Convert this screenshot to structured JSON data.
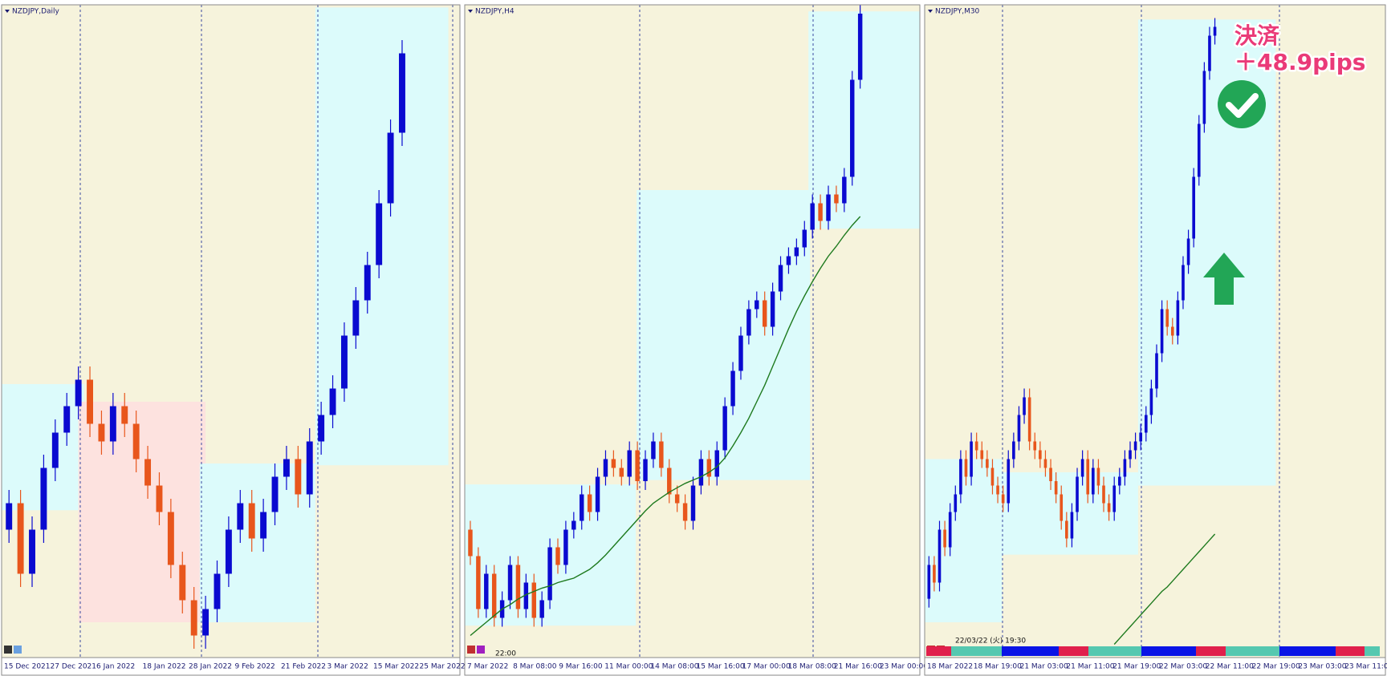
{
  "chart_data": [
    {
      "type": "candlestick",
      "title": "NZDJPY,Daily",
      "xtick_labels": [
        "15 Dec 2021",
        "27 Dec 2021",
        "6 Jan 2022",
        "18 Jan 2022",
        "28 Jan 2022",
        "9 Feb 2022",
        "21 Feb 2022",
        "3 Mar 2022",
        "15 Mar 2022",
        "25 Mar 2022"
      ],
      "ylim": [
        76.55,
        83.95
      ],
      "colors": {
        "up": "#0a0ad0",
        "down": "#e8561c",
        "ma": "#1e7a1e"
      },
      "open": [
        78.0,
        78.3,
        77.5,
        78.0,
        78.7,
        79.1,
        79.4,
        79.7,
        79.2,
        79.0,
        79.4,
        79.2,
        78.8,
        78.5,
        78.2,
        77.6,
        77.2,
        76.8,
        77.1,
        77.5,
        78.0,
        78.3,
        77.9,
        78.2,
        78.6,
        78.8,
        78.4,
        79.0,
        79.3,
        79.6,
        80.2,
        80.6,
        81.0,
        81.7,
        82.5
      ],
      "high": [
        78.45,
        78.45,
        78.15,
        78.85,
        79.25,
        79.55,
        79.85,
        79.85,
        79.35,
        79.55,
        79.55,
        79.35,
        78.95,
        78.65,
        78.35,
        77.75,
        77.35,
        77.25,
        77.65,
        78.15,
        78.45,
        78.45,
        78.35,
        78.75,
        78.95,
        78.95,
        79.15,
        79.45,
        79.75,
        80.35,
        80.75,
        81.15,
        81.85,
        82.65,
        83.55
      ],
      "low": [
        77.85,
        77.35,
        77.35,
        77.85,
        78.55,
        78.95,
        79.25,
        79.05,
        78.85,
        78.85,
        79.05,
        78.65,
        78.35,
        78.05,
        77.45,
        77.05,
        76.65,
        76.65,
        76.95,
        77.35,
        77.85,
        77.75,
        77.75,
        78.05,
        78.45,
        78.25,
        78.25,
        78.85,
        79.15,
        79.45,
        80.05,
        80.45,
        80.85,
        81.55,
        82.35
      ],
      "close": [
        78.3,
        77.5,
        78.0,
        78.7,
        79.1,
        79.4,
        79.7,
        79.2,
        79.0,
        79.4,
        79.2,
        78.8,
        78.5,
        78.2,
        77.6,
        77.2,
        76.8,
        77.1,
        77.5,
        78.0,
        78.3,
        77.9,
        78.2,
        78.6,
        78.8,
        78.4,
        79.0,
        79.3,
        79.6,
        80.2,
        80.6,
        81.0,
        81.7,
        82.5,
        83.4
      ],
      "zones": [
        {
          "color": "#dcfbfb",
          "x": [
            -0.5,
            6
          ],
          "y": [
            79.65,
            78.22
          ]
        },
        {
          "color": "#fde2df",
          "x": [
            6.5,
            16.5
          ],
          "y": [
            79.45,
            76.95
          ]
        },
        {
          "color": "#dcfbfb",
          "x": [
            17,
            26
          ],
          "y": [
            78.75,
            76.95
          ]
        },
        {
          "color": "#dcfbfb",
          "x": [
            27,
            37.5
          ],
          "y": [
            83.92,
            78.73
          ]
        }
      ]
    },
    {
      "type": "candlestick",
      "title": "NZDJPY,H4",
      "cursor_label": "22:00",
      "xtick_labels": [
        "7 Mar 2022",
        "8 Mar 08:00",
        "9 Mar 16:00",
        "11 Mar 00:00",
        "14 Mar 08:00",
        "15 Mar 16:00",
        "17 Mar 00:00",
        "18 Mar 08:00",
        "21 Mar 16:00",
        "23 Mar 00:00"
      ],
      "ylim": [
        77.74,
        83.66
      ],
      "colors": {
        "up": "#0a0ad0",
        "down": "#e8561c",
        "ma": "#1e7a1e"
      },
      "open": [
        78.9,
        78.66,
        78.18,
        78.5,
        78.1,
        78.26,
        78.58,
        78.18,
        78.42,
        78.1,
        78.26,
        78.74,
        78.58,
        78.9,
        78.98,
        79.22,
        79.06,
        79.38,
        79.54,
        79.46,
        79.38,
        79.62,
        79.34,
        79.54,
        79.7,
        79.46,
        79.22,
        79.14,
        78.98,
        79.3,
        79.54,
        79.38,
        79.62,
        80.02,
        80.34,
        80.66,
        80.9,
        80.98,
        80.74,
        81.06,
        81.3,
        81.38,
        81.46,
        81.62,
        81.86,
        81.7,
        81.94,
        81.86,
        82.1,
        82.98
      ],
      "high": [
        78.98,
        78.74,
        78.58,
        78.58,
        78.34,
        78.66,
        78.66,
        78.5,
        78.5,
        78.34,
        78.82,
        78.82,
        78.98,
        79.06,
        79.3,
        79.3,
        79.46,
        79.62,
        79.62,
        79.54,
        79.7,
        79.7,
        79.62,
        79.78,
        79.78,
        79.54,
        79.3,
        79.22,
        79.38,
        79.62,
        79.62,
        79.7,
        80.1,
        80.42,
        80.74,
        80.98,
        81.06,
        81.06,
        81.14,
        81.38,
        81.46,
        81.54,
        81.7,
        81.94,
        81.94,
        82.02,
        82.02,
        82.18,
        83.06,
        83.66
      ],
      "low": [
        78.58,
        78.1,
        78.1,
        78.02,
        78.02,
        78.18,
        78.1,
        78.1,
        78.02,
        78.02,
        78.18,
        78.5,
        78.5,
        78.82,
        78.9,
        78.98,
        78.98,
        79.3,
        79.38,
        79.3,
        79.3,
        79.26,
        79.26,
        79.46,
        79.38,
        79.14,
        79.06,
        78.9,
        78.9,
        79.22,
        79.3,
        79.3,
        79.54,
        79.94,
        80.26,
        80.58,
        80.82,
        80.66,
        80.66,
        80.98,
        81.22,
        81.3,
        81.38,
        81.54,
        81.62,
        81.62,
        81.78,
        81.78,
        82.02,
        82.9
      ],
      "close": [
        78.66,
        78.18,
        78.5,
        78.1,
        78.26,
        78.58,
        78.18,
        78.42,
        78.1,
        78.26,
        78.74,
        78.58,
        78.9,
        78.98,
        79.22,
        79.06,
        79.38,
        79.54,
        79.46,
        79.38,
        79.62,
        79.34,
        79.54,
        79.7,
        79.46,
        79.22,
        79.14,
        78.98,
        79.3,
        79.54,
        79.38,
        79.62,
        80.02,
        80.34,
        80.66,
        80.9,
        80.98,
        80.74,
        81.06,
        81.3,
        81.38,
        81.46,
        81.62,
        81.86,
        81.7,
        81.94,
        81.86,
        82.1,
        82.98,
        83.58
      ],
      "ma": [
        77.94,
        78.0,
        78.06,
        78.12,
        78.18,
        78.22,
        78.27,
        78.31,
        78.34,
        78.37,
        78.39,
        78.42,
        78.44,
        78.46,
        78.5,
        78.54,
        78.6,
        78.67,
        78.75,
        78.83,
        78.91,
        78.99,
        79.07,
        79.14,
        79.19,
        79.24,
        79.28,
        79.32,
        79.35,
        79.38,
        79.42,
        79.47,
        79.55,
        79.66,
        79.78,
        79.91,
        80.06,
        80.21,
        80.38,
        80.55,
        80.72,
        80.88,
        81.02,
        81.15,
        81.27,
        81.38,
        81.47,
        81.57,
        81.66,
        81.74
      ],
      "zones": [
        {
          "color": "#dcfbfb",
          "x": [
            -0.5,
            20.3
          ],
          "y": [
            79.31,
            78.03
          ]
        },
        {
          "color": "#dcfbfb",
          "x": [
            21.4,
            42.2
          ],
          "y": [
            81.98,
            79.35
          ]
        },
        {
          "color": "#dcfbfb",
          "x": [
            43,
            56
          ],
          "y": [
            83.6,
            81.63
          ]
        }
      ]
    },
    {
      "type": "candlestick",
      "title": "NZDJPY,M30",
      "cursor_label": "22/03/22 (火) 19:30",
      "annotations": [
        "決済",
        "＋48.9pips"
      ],
      "xtick_labels": [
        "18 Mar 2022",
        "18 Mar 19:00",
        "21 Mar 03:00",
        "21 Mar 11:00",
        "21 Mar 19:00",
        "22 Mar 03:00",
        "22 Mar 11:00",
        "22 Mar 19:00",
        "23 Mar 03:00",
        "23 Mar 11:00"
      ],
      "ylim": [
        79.2,
        83.64
      ],
      "colors": {
        "up": "#0a0ad0",
        "down": "#e8561c",
        "ma": "#1e7a1e"
      },
      "open": [
        79.6,
        79.83,
        79.71,
        80.07,
        79.95,
        80.19,
        80.31,
        80.55,
        80.43,
        80.67,
        80.61,
        80.55,
        80.49,
        80.37,
        80.31,
        80.25,
        80.55,
        80.67,
        80.85,
        80.97,
        80.67,
        80.61,
        80.55,
        80.49,
        80.4,
        80.31,
        80.13,
        80.01,
        80.19,
        80.43,
        80.55,
        80.31,
        80.49,
        80.37,
        80.25,
        80.19,
        80.37,
        80.43,
        80.55,
        80.61,
        80.67,
        80.73,
        80.85,
        81.03,
        81.27,
        81.57,
        81.45,
        81.39,
        81.63,
        81.87,
        82.05,
        82.47,
        82.83,
        83.19,
        83.43
      ],
      "high": [
        79.89,
        79.89,
        80.13,
        80.13,
        80.25,
        80.37,
        80.61,
        80.61,
        80.73,
        80.73,
        80.67,
        80.61,
        80.55,
        80.43,
        80.37,
        80.61,
        80.73,
        80.91,
        81.03,
        81.03,
        80.73,
        80.67,
        80.61,
        80.55,
        80.46,
        80.37,
        80.19,
        80.25,
        80.49,
        80.61,
        80.61,
        80.55,
        80.55,
        80.43,
        80.31,
        80.43,
        80.49,
        80.61,
        80.67,
        80.73,
        80.79,
        80.91,
        81.09,
        81.33,
        81.63,
        81.63,
        81.51,
        81.69,
        81.93,
        82.11,
        82.53,
        82.89,
        83.25,
        83.49,
        83.55
      ],
      "low": [
        79.54,
        79.65,
        79.65,
        79.89,
        79.89,
        80.13,
        80.25,
        80.37,
        80.37,
        80.55,
        80.49,
        80.43,
        80.31,
        80.25,
        80.19,
        80.19,
        80.49,
        80.61,
        80.79,
        80.61,
        80.55,
        80.49,
        80.43,
        80.34,
        80.25,
        80.07,
        79.95,
        79.95,
        80.13,
        80.37,
        80.25,
        80.25,
        80.31,
        80.19,
        80.13,
        80.13,
        80.31,
        80.37,
        80.49,
        80.55,
        80.61,
        80.67,
        80.79,
        80.97,
        81.21,
        81.39,
        81.33,
        81.33,
        81.57,
        81.81,
        81.99,
        82.41,
        82.77,
        83.13,
        83.37
      ],
      "close": [
        79.83,
        79.71,
        80.07,
        79.95,
        80.19,
        80.31,
        80.55,
        80.43,
        80.67,
        80.61,
        80.55,
        80.49,
        80.37,
        80.31,
        80.25,
        80.55,
        80.67,
        80.85,
        80.97,
        80.67,
        80.61,
        80.55,
        80.49,
        80.4,
        80.31,
        80.13,
        80.01,
        80.19,
        80.43,
        80.55,
        80.31,
        80.49,
        80.37,
        80.25,
        80.19,
        80.37,
        80.43,
        80.55,
        80.61,
        80.67,
        80.73,
        80.85,
        81.03,
        81.27,
        81.57,
        81.45,
        81.39,
        81.63,
        81.87,
        82.05,
        82.47,
        82.83,
        83.19,
        83.43,
        83.49
      ],
      "ma": [
        null,
        null,
        null,
        null,
        null,
        null,
        null,
        null,
        null,
        null,
        null,
        null,
        null,
        null,
        null,
        null,
        null,
        null,
        null,
        null,
        null,
        null,
        null,
        null,
        null,
        null,
        null,
        null,
        null,
        null,
        null,
        null,
        null,
        null,
        null,
        79.29,
        79.33,
        79.37,
        79.41,
        79.45,
        79.49,
        79.53,
        79.57,
        79.61,
        79.65,
        79.68,
        79.72,
        79.76,
        79.8,
        79.84,
        79.88,
        79.92,
        79.96,
        80.0,
        80.04
      ],
      "zones": [
        {
          "color": "#dcfbfb",
          "x": [
            -0.5,
            13.3
          ],
          "y": [
            80.55,
            79.44
          ]
        },
        {
          "color": "#dcfbfb",
          "x": [
            14,
            39
          ],
          "y": [
            80.46,
            79.9
          ]
        },
        {
          "color": "#dcfbfb",
          "x": [
            40,
            65
          ],
          "y": [
            83.54,
            80.37
          ]
        }
      ]
    }
  ]
}
